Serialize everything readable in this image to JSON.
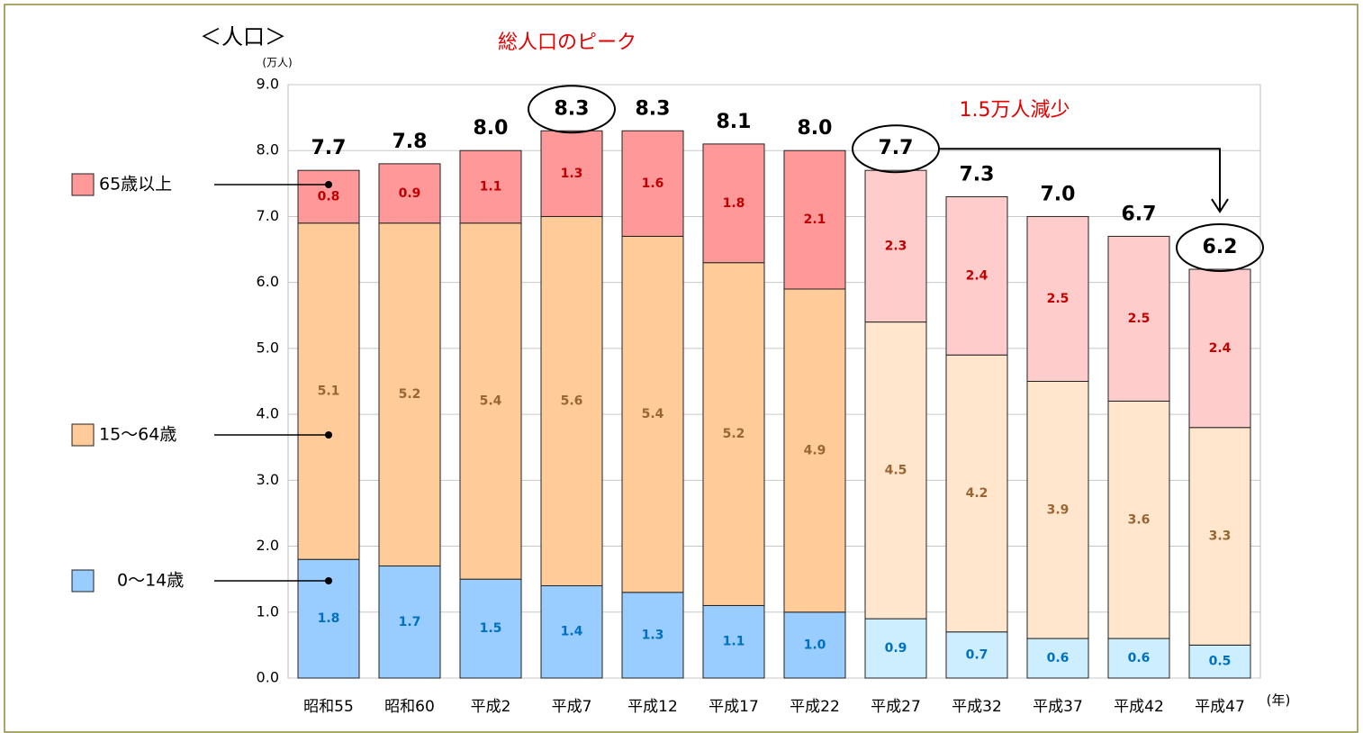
{
  "chart_data": {
    "type": "stacked_bar",
    "y_axis_title": "＜人口＞",
    "y_unit": "(万人)",
    "x_unit": "(年)",
    "annotations": [
      "総人口のピーク",
      "1.5万人減少"
    ],
    "categories": [
      "昭和55",
      "昭和60",
      "平成2",
      "平成7",
      "平成12",
      "平成17",
      "平成22",
      "平成27",
      "平成32",
      "平成37",
      "平成42",
      "平成47"
    ],
    "series": [
      {
        "name": "0〜14歳",
        "color": "#99ccff",
        "label_color": "#0070c0",
        "colors": [
          "#99ccff",
          "#99ccff",
          "#99ccff",
          "#99ccff",
          "#99ccff",
          "#99ccff",
          "#99ccff",
          "#cceeff",
          "#cceeff",
          "#cceeff",
          "#cceeff",
          "#cceeff"
        ],
        "values": [
          1.8,
          1.7,
          1.5,
          1.4,
          1.3,
          1.1,
          1.0,
          0.9,
          0.7,
          0.6,
          0.6,
          0.5
        ],
        "value_labels": [
          "1.8",
          "1.7",
          "1.5",
          "1.4",
          "1.3",
          "1.1",
          "1.0",
          "0.9",
          "0.7",
          "0.6",
          "0.6",
          "0.5"
        ]
      },
      {
        "name": "15〜64歳",
        "color": "#ffcc99",
        "label_color": "#996633",
        "colors": [
          "#ffcc99",
          "#ffcc99",
          "#ffcc99",
          "#ffcc99",
          "#ffcc99",
          "#ffcc99",
          "#ffcc99",
          "#ffe6cc",
          "#ffe6cc",
          "#ffe6cc",
          "#ffe6cc",
          "#ffe6cc"
        ],
        "values": [
          5.1,
          5.2,
          5.4,
          5.6,
          5.4,
          5.2,
          4.9,
          4.5,
          4.2,
          3.9,
          3.6,
          3.3
        ],
        "value_labels": [
          "5.1",
          "5.2",
          "5.4",
          "5.6",
          "5.4",
          "5.2",
          "4.9",
          "4.5",
          "4.2",
          "3.9",
          "3.6",
          "3.3"
        ]
      },
      {
        "name": "65歳以上",
        "color": "#ff9999",
        "label_color": "#c00000",
        "colors": [
          "#ff9999",
          "#ff9999",
          "#ff9999",
          "#ff9999",
          "#ff9999",
          "#ff9999",
          "#ff9999",
          "#ffcccc",
          "#ffcccc",
          "#ffcccc",
          "#ffcccc",
          "#ffcccc"
        ],
        "values": [
          0.8,
          0.9,
          1.1,
          1.3,
          1.6,
          1.8,
          2.1,
          2.3,
          2.4,
          2.5,
          2.5,
          2.4
        ],
        "value_labels": [
          "0.8",
          "0.9",
          "1.1",
          "1.3",
          "1.6",
          "1.8",
          "2.1",
          "2.3",
          "2.4",
          "2.5",
          "2.5",
          "2.4"
        ]
      }
    ],
    "totals": {
      "values": [
        7.7,
        7.8,
        8.0,
        8.3,
        8.3,
        8.1,
        8.0,
        7.7,
        7.3,
        7.0,
        6.7,
        6.2
      ],
      "value_labels": [
        "7.7",
        "7.8",
        "8.0",
        "8.3",
        "8.3",
        "8.1",
        "8.0",
        "7.7",
        "7.3",
        "7.0",
        "6.7",
        "6.2"
      ]
    },
    "highlight": [
      3,
      7,
      11
    ],
    "ylim": [
      0,
      9
    ],
    "yticks": [
      {
        "value": 0,
        "label": "0.0"
      },
      {
        "value": 1,
        "label": "1.0"
      },
      {
        "value": 2,
        "label": "2.0"
      },
      {
        "value": 3,
        "label": "3.0"
      },
      {
        "value": 4,
        "label": "4.0"
      },
      {
        "value": 5,
        "label": "5.0"
      },
      {
        "value": 6,
        "label": "6.0"
      },
      {
        "value": 7,
        "label": "7.0"
      },
      {
        "value": 8,
        "label": "8.0"
      },
      {
        "value": 9,
        "label": "9.0"
      }
    ],
    "grid": true
  }
}
